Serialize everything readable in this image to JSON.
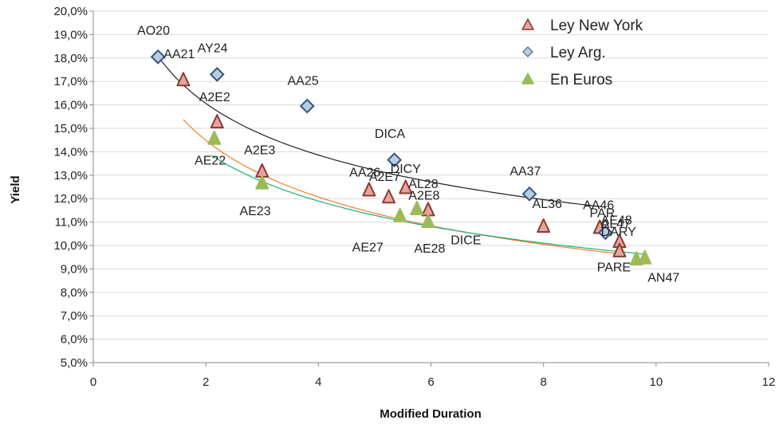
{
  "chart_data": {
    "type": "scatter",
    "xlabel": "Modified Duration",
    "ylabel": "Yield",
    "xlim": [
      0,
      12
    ],
    "ylim": [
      5.0,
      20.0
    ],
    "x_ticks": [
      "0",
      "2",
      "4",
      "6",
      "8",
      "10",
      "12"
    ],
    "y_ticks": [
      "5,0%",
      "6,0%",
      "7,0%",
      "8,0%",
      "9,0%",
      "10,0%",
      "11,0%",
      "12,0%",
      "13,0%",
      "14,0%",
      "15,0%",
      "16,0%",
      "17,0%",
      "18,0%",
      "19,0%",
      "20,0%"
    ],
    "grid": true,
    "legend_position": "top-right",
    "series": [
      {
        "name": "Ley New York",
        "marker": "triangle",
        "color": "#e6a49c",
        "edge": "#8b3a32",
        "trend_color": "#f07d2c",
        "points": [
          {
            "x": 1.6,
            "y": 17.1
          },
          {
            "x": 2.2,
            "y": 15.3
          },
          {
            "x": 3.0,
            "y": 13.2
          },
          {
            "x": 4.9,
            "y": 12.4
          },
          {
            "x": 5.25,
            "y": 12.1
          },
          {
            "x": 5.55,
            "y": 12.5
          },
          {
            "x": 5.95,
            "y": 11.55
          },
          {
            "x": 8.0,
            "y": 10.85
          },
          {
            "x": 9.0,
            "y": 10.8
          },
          {
            "x": 9.35,
            "y": 10.2
          },
          {
            "x": 9.35,
            "y": 9.8
          }
        ]
      },
      {
        "name": "Ley Arg.",
        "marker": "diamond",
        "color": "#b8cce4",
        "edge": "#38567a",
        "trend_color": "#222222",
        "points": [
          {
            "x": 1.15,
            "y": 18.05
          },
          {
            "x": 2.2,
            "y": 17.3
          },
          {
            "x": 3.8,
            "y": 15.95
          },
          {
            "x": 5.35,
            "y": 13.65
          },
          {
            "x": 7.75,
            "y": 12.2
          },
          {
            "x": 9.1,
            "y": 10.55
          }
        ]
      },
      {
        "name": "En Euros",
        "marker": "triangle",
        "color": "#9bbb59",
        "edge": "#9bbb59",
        "trend_color": "#1db07a",
        "points": [
          {
            "x": 2.15,
            "y": 14.6
          },
          {
            "x": 3.0,
            "y": 12.7
          },
          {
            "x": 5.45,
            "y": 11.3
          },
          {
            "x": 5.75,
            "y": 11.6
          },
          {
            "x": 5.95,
            "y": 11.05
          },
          {
            "x": 9.65,
            "y": 9.45
          },
          {
            "x": 9.8,
            "y": 9.5
          }
        ]
      }
    ],
    "annotations": [
      {
        "text": "AO20",
        "x": 0.78,
        "y": 19.0
      },
      {
        "text": "AA21",
        "x": 1.25,
        "y": 18.0
      },
      {
        "text": "AY24",
        "x": 1.85,
        "y": 18.25
      },
      {
        "text": "AA25",
        "x": 3.45,
        "y": 16.85
      },
      {
        "text": "A2E2",
        "x": 1.88,
        "y": 16.15
      },
      {
        "text": "DICA",
        "x": 5.0,
        "y": 14.6
      },
      {
        "text": "A2E3",
        "x": 2.68,
        "y": 13.9
      },
      {
        "text": "AE22",
        "x": 1.8,
        "y": 13.45
      },
      {
        "text": "AA26",
        "x": 4.55,
        "y": 12.95
      },
      {
        "text": "DICY",
        "x": 5.28,
        "y": 13.1
      },
      {
        "text": "A2E7",
        "x": 4.9,
        "y": 12.75
      },
      {
        "text": "AA37",
        "x": 7.4,
        "y": 13.0
      },
      {
        "text": "AL28",
        "x": 5.6,
        "y": 12.45
      },
      {
        "text": "A2E8",
        "x": 5.6,
        "y": 11.95
      },
      {
        "text": "AL36",
        "x": 7.8,
        "y": 11.6
      },
      {
        "text": "AA46",
        "x": 8.7,
        "y": 11.55
      },
      {
        "text": "PAR",
        "x": 8.82,
        "y": 11.2
      },
      {
        "text": "AE48",
        "x": 9.02,
        "y": 10.9
      },
      {
        "text": "AL47",
        "x": 9.02,
        "y": 10.75
      },
      {
        "text": "DARY",
        "x": 9.02,
        "y": 10.4
      },
      {
        "text": "AE23",
        "x": 2.6,
        "y": 11.3
      },
      {
        "text": "AE27",
        "x": 4.6,
        "y": 9.75
      },
      {
        "text": "DICE",
        "x": 6.35,
        "y": 10.05
      },
      {
        "text": "AE28",
        "x": 5.7,
        "y": 9.7
      },
      {
        "text": "PARE",
        "x": 8.95,
        "y": 8.9
      },
      {
        "text": "AN47",
        "x": 9.85,
        "y": 8.45
      }
    ],
    "trendlines": [
      {
        "series": "Ley Arg.",
        "type": "power",
        "a": 18.62,
        "b": -0.213,
        "x_start": 1.1,
        "x_end": 9.1
      },
      {
        "series": "Ley New York",
        "type": "power",
        "a": 17.4,
        "b": -0.264,
        "x_start": 1.6,
        "x_end": 9.35
      },
      {
        "series": "En Euros",
        "type": "power",
        "a": 16.5,
        "b": -0.236,
        "x_start": 2.1,
        "x_end": 9.8
      }
    ]
  }
}
